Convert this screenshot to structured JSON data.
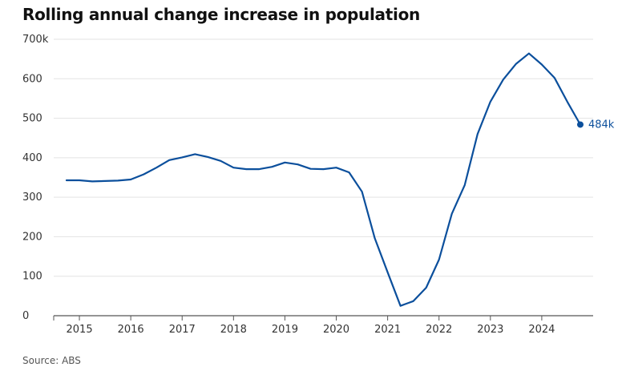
{
  "chart_data": {
    "type": "line",
    "title": "Rolling annual change increase in population",
    "source": "Source: ABS",
    "ylim": [
      0,
      700
    ],
    "yticks": [
      0,
      100,
      200,
      300,
      400,
      500,
      600,
      700
    ],
    "ytick_labels": [
      "0",
      "100",
      "200",
      "300",
      "400",
      "500",
      "600",
      "700k"
    ],
    "xticks": [
      2015,
      2016,
      2017,
      2018,
      2019,
      2020,
      2021,
      2022,
      2023,
      2024
    ],
    "xtick_labels": [
      "2015",
      "2016",
      "2017",
      "2018",
      "2019",
      "2020",
      "2021",
      "2022",
      "2023",
      "2024"
    ],
    "xlim": [
      2014.5,
      2025.0
    ],
    "grid": true,
    "color": "#0b4f9c",
    "series": [
      {
        "x": [
          2014.75,
          2015.0,
          2015.25,
          2015.5,
          2015.75,
          2016.0,
          2016.25,
          2016.5,
          2016.75,
          2017.0,
          2017.25,
          2017.5,
          2017.75,
          2018.0,
          2018.25,
          2018.5,
          2018.75,
          2019.0,
          2019.25,
          2019.5,
          2019.75,
          2020.0,
          2020.25,
          2020.5,
          2020.75,
          2021.0,
          2021.25,
          2021.5,
          2021.75,
          2022.0,
          2022.25,
          2022.5,
          2022.75,
          2023.0,
          2023.25,
          2023.5,
          2023.75,
          2024.0,
          2024.25,
          2024.5,
          2024.75
        ],
        "values": [
          343,
          343,
          340,
          341,
          342,
          345,
          358,
          375,
          394,
          401,
          409,
          402,
          392,
          375,
          371,
          371,
          377,
          388,
          383,
          372,
          371,
          375,
          363,
          314,
          196,
          110,
          25,
          37,
          71,
          142,
          258,
          331,
          460,
          542,
          598,
          638,
          664,
          636,
          602,
          541,
          484
        ]
      }
    ],
    "end_label": "484k"
  }
}
